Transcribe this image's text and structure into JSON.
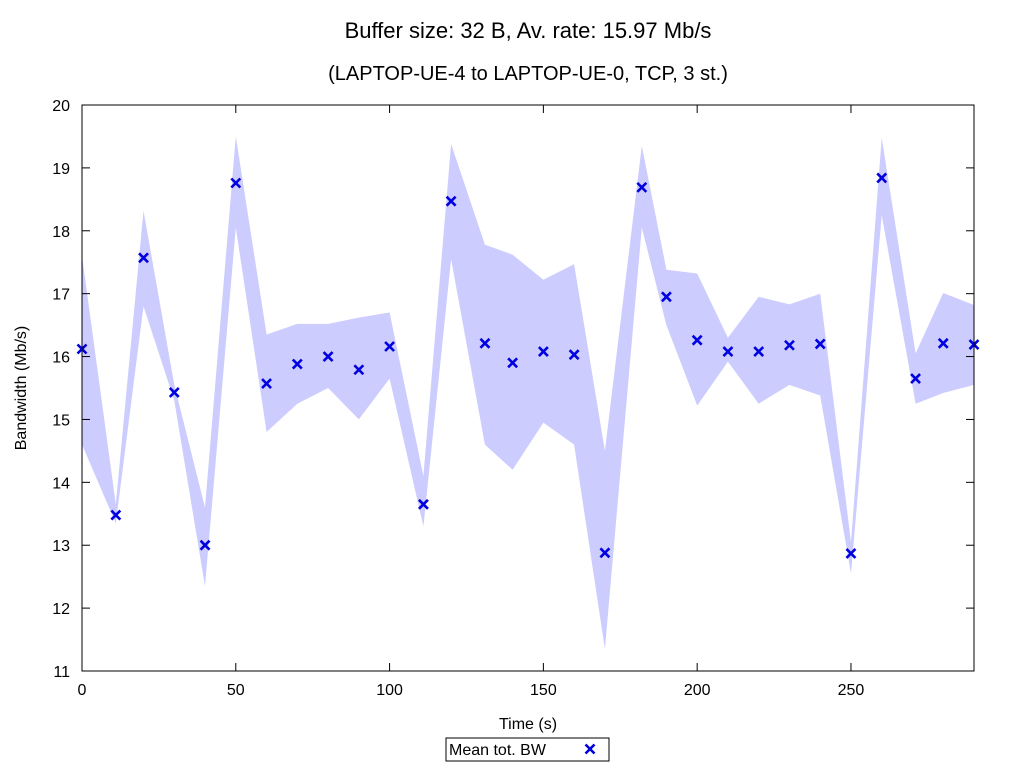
{
  "chart_data": {
    "type": "scatter",
    "title": "Buffer size: 32 B, Av. rate: 15.97 Mb/s",
    "subtitle": "(LAPTOP-UE-4 to LAPTOP-UE-0, TCP, 3 st.)",
    "xlabel": "Time (s)",
    "ylabel": "Bandwidth (Mb/s)",
    "xlim": [
      0,
      290
    ],
    "ylim": [
      11,
      20
    ],
    "xticks": [
      0,
      50,
      100,
      150,
      200,
      250
    ],
    "yticks": [
      11,
      12,
      13,
      14,
      15,
      16,
      17,
      18,
      19,
      20
    ],
    "legend_position": "bottom-center",
    "colors": {
      "series": "#0000e0",
      "band": "#ccccff",
      "axis": "#000000"
    },
    "series": [
      {
        "name": "Mean tot. BW",
        "marker": "x",
        "x": [
          0,
          11,
          20,
          30,
          40,
          50,
          60,
          70,
          80,
          90,
          100,
          111,
          120,
          131,
          140,
          150,
          160,
          170,
          182,
          190,
          200,
          210,
          220,
          230,
          240,
          250,
          260,
          271,
          280,
          290
        ],
        "y": [
          16.12,
          13.48,
          17.57,
          15.43,
          13.0,
          18.76,
          15.57,
          15.88,
          16.0,
          15.79,
          16.16,
          13.65,
          18.47,
          16.21,
          15.9,
          16.08,
          16.03,
          12.88,
          18.69,
          16.95,
          16.26,
          16.08,
          16.08,
          16.18,
          16.2,
          12.87,
          18.84,
          15.65,
          16.21,
          16.19
        ],
        "band_upper": [
          17.6,
          13.65,
          18.32,
          15.55,
          13.6,
          19.5,
          16.35,
          16.52,
          16.52,
          16.62,
          16.7,
          14.1,
          19.38,
          17.78,
          17.62,
          17.22,
          17.47,
          14.5,
          19.35,
          17.38,
          17.32,
          16.3,
          16.95,
          16.83,
          17.0,
          13.05,
          19.48,
          16.05,
          17.01,
          16.82
        ],
        "band_lower": [
          14.6,
          13.35,
          16.8,
          15.3,
          12.35,
          18.05,
          14.8,
          15.25,
          15.5,
          15.0,
          15.65,
          13.3,
          17.55,
          14.6,
          14.2,
          14.95,
          14.6,
          11.35,
          18.05,
          16.5,
          15.22,
          15.92,
          15.25,
          15.55,
          15.38,
          12.55,
          18.25,
          15.25,
          15.42,
          15.55
        ]
      }
    ]
  }
}
